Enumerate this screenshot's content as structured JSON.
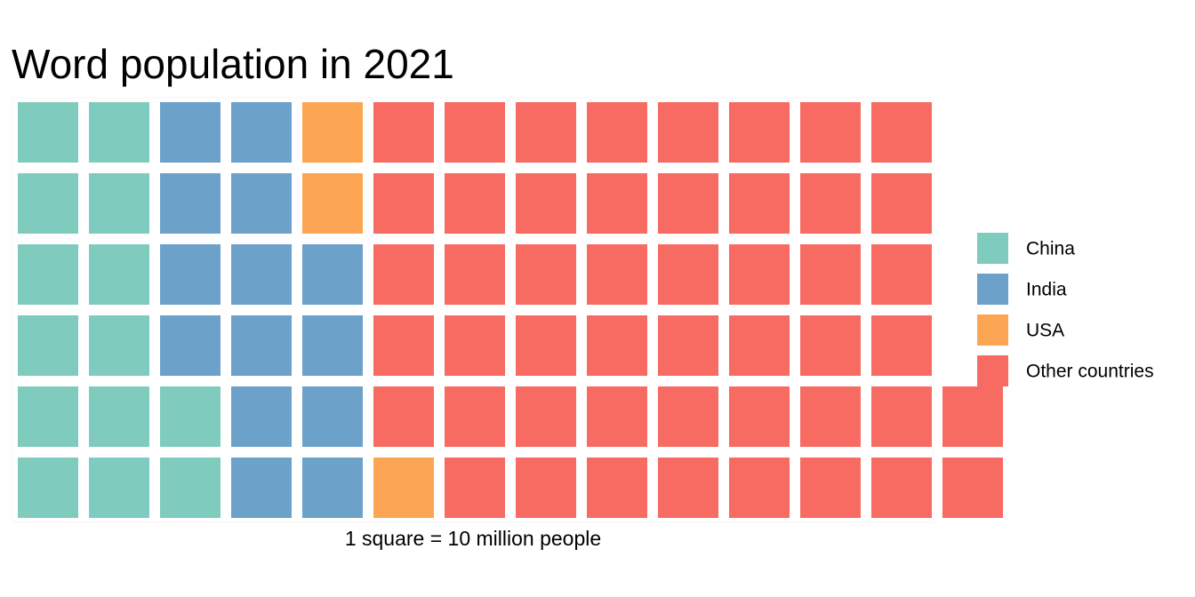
{
  "chart_data": {
    "type": "waffle",
    "title": "Word population in 2021",
    "caption": "1 square = 10 million people",
    "unit_per_square": "10 million people",
    "rows": 6,
    "fill_order": "column-wise, bottom to top",
    "legend_position": "right",
    "grid": false,
    "series": [
      {
        "name": "China",
        "squares": 14,
        "color": "#7fccbe"
      },
      {
        "name": "India",
        "squares": 14,
        "color": "#6ca2ca"
      },
      {
        "name": "USA",
        "squares": 3,
        "color": "#fca653"
      },
      {
        "name": "Other countries",
        "squares": 49,
        "color": "#f76b62"
      }
    ]
  }
}
